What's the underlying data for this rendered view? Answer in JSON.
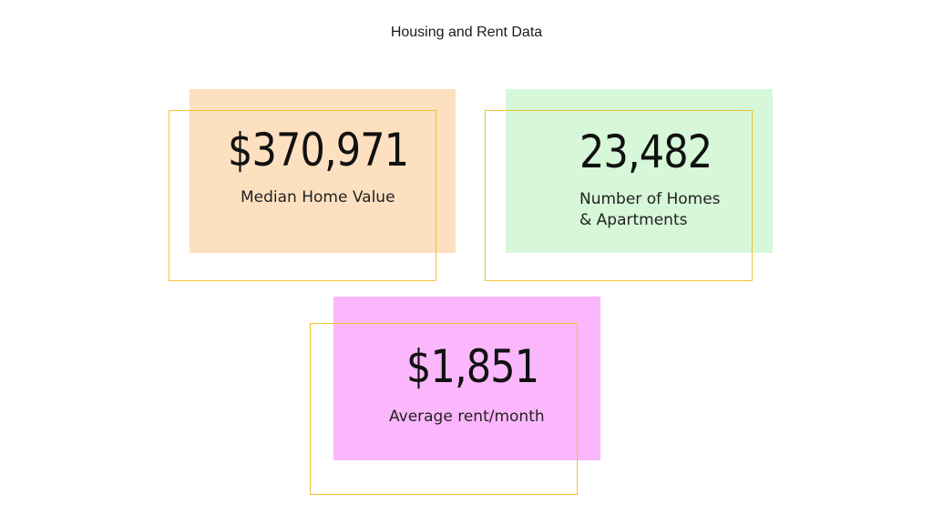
{
  "title": "Housing and Rent Data",
  "cards": [
    {
      "value": "$370,971",
      "label_lines": [
        "Median Home Value"
      ],
      "fill_color": "#fde0bf",
      "frame_color": "#f2c233"
    },
    {
      "value": "23,482",
      "label_lines": [
        "Number of Homes",
        "& Apartments"
      ],
      "fill_color": "#d6f7d8",
      "frame_color": "#f2c233"
    },
    {
      "value": "$1,851",
      "label_lines": [
        "Average rent/month"
      ],
      "fill_color": "#fbb7fb",
      "frame_color": "#f2c233"
    }
  ]
}
